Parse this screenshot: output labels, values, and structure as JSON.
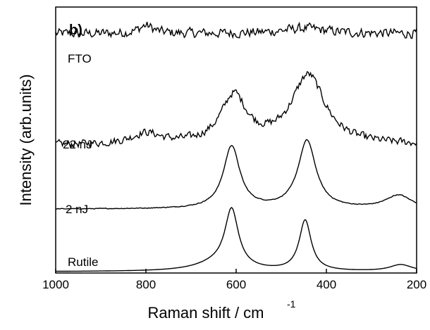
{
  "chart_data": {
    "type": "line",
    "panel_label": "b)",
    "xlabel_text": "Raman shift / cm",
    "xlabel_sup": "-1",
    "ylabel": "Intensity (arb.units)",
    "xlim": [
      1000,
      200
    ],
    "x_ticks": [
      1000,
      800,
      600,
      400,
      200
    ],
    "x_tick_labels": [
      "1000",
      "800",
      "600",
      "400",
      "200"
    ],
    "y_ticks": "none",
    "grid": false,
    "series": [
      {
        "name": "FTO",
        "style": "noisy-flat",
        "baseline": 0.9,
        "peaks": [
          {
            "x": 800,
            "height": 0.03,
            "width": 20
          },
          {
            "x": 450,
            "height": 0.02,
            "width": 60
          }
        ],
        "noise": 0.025
      },
      {
        "name": "22 nJ",
        "style": "noisy-broad",
        "baseline": 0.48,
        "peaks": [
          {
            "x": 800,
            "height": 0.04,
            "width": 40
          },
          {
            "x": 605,
            "height": 0.18,
            "width": 35
          },
          {
            "x": 440,
            "height": 0.26,
            "width": 45
          }
        ],
        "noise": 0.02
      },
      {
        "name": "2 nJ",
        "style": "smooth",
        "baseline": 0.24,
        "peaks": [
          {
            "x": 610,
            "height": 0.235,
            "width": 22
          },
          {
            "x": 443,
            "height": 0.255,
            "width": 24
          },
          {
            "x": 240,
            "height": 0.05,
            "width": 35
          }
        ],
        "noise": 0.002
      },
      {
        "name": "Rutile",
        "style": "smooth",
        "baseline": 0.005,
        "peaks": [
          {
            "x": 610,
            "height": 0.215,
            "width": 18
          },
          {
            "x": 447,
            "height": 0.19,
            "width": 16
          },
          {
            "x": 640,
            "height": 0.03,
            "width": 60
          },
          {
            "x": 235,
            "height": 0.025,
            "width": 30
          }
        ],
        "noise": 0.0
      }
    ]
  }
}
